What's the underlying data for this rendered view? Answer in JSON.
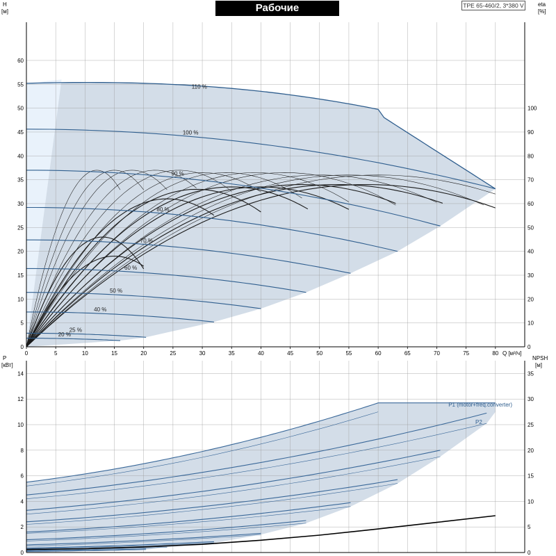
{
  "header": {
    "title": "Рабочие характеристики",
    "model": "TPE 65-460/2, 3*380 V"
  },
  "colors": {
    "envelope_fill": "#d3dde8",
    "light_region_fill": "#e9f2fb",
    "qh_curve": "#2f5e8e",
    "efficiency_curves": "#1a1a1a",
    "power_curves": "#3a6899",
    "npsh_curve": "#000000",
    "axis": "#000000",
    "grid": "#9a9a9a",
    "label_text": "#2f5e8e"
  },
  "chart_data": [
    {
      "type": "line",
      "name": "head",
      "xlabel": "Q [м³/ч]",
      "ylabel_left": [
        "H",
        "[м]"
      ],
      "ylabel_right": [
        "eta",
        "[%]"
      ],
      "xlim": [
        0,
        85
      ],
      "ylim_left": [
        0,
        68
      ],
      "ylim_right": [
        0,
        136
      ],
      "x_ticks": [
        0,
        5,
        10,
        15,
        20,
        25,
        30,
        35,
        40,
        45,
        50,
        55,
        60,
        65,
        70,
        75,
        80
      ],
      "y_ticks_left": [
        0,
        5,
        10,
        15,
        20,
        25,
        30,
        35,
        40,
        45,
        50,
        55,
        60
      ],
      "y_ticks_right": [
        0,
        10,
        20,
        30,
        40,
        50,
        60,
        70,
        80,
        90,
        100
      ],
      "grid": true,
      "speed_curves": [
        {
          "label": "110 %",
          "h0": 55.2,
          "h_end": 48.8,
          "q_max": 60,
          "label_q": 29.5
        },
        {
          "label": "100 %",
          "h0": 45.6,
          "h_end": 33.1,
          "q_max": 80,
          "label_q": 28
        },
        {
          "label": "90 %",
          "h0": 37.0,
          "h_end": 25.3,
          "q_max": 70.6,
          "label_q": 25.8
        },
        {
          "label": "80 %",
          "h0": 29.2,
          "h_end": 20.0,
          "q_max": 63.3,
          "label_q": 23.3
        },
        {
          "label": "70 %",
          "h0": 22.4,
          "h_end": 15.4,
          "q_max": 55.3,
          "label_q": 20.5
        },
        {
          "label": "60 %",
          "h0": 16.4,
          "h_end": 11.4,
          "q_max": 47.7,
          "label_q": 17.8
        },
        {
          "label": "50 %",
          "h0": 11.4,
          "h_end": 8.0,
          "q_max": 40.0,
          "label_q": 15.3
        },
        {
          "label": "40 %",
          "h0": 7.3,
          "h_end": 5.2,
          "q_max": 32.0,
          "label_q": 12.6
        },
        {
          "label": "25 %",
          "h0": 2.85,
          "h_end": 2.0,
          "q_max": 20.4,
          "label_q": 8.4
        },
        {
          "label": "20 %",
          "h0": 1.8,
          "h_end": 1.3,
          "q_max": 16.0,
          "label_q": 6.5
        }
      ],
      "envelope": {
        "max_curve": {
          "h0": 55.2,
          "q_knee": 60,
          "h_knee": 48.8,
          "q_end": 80,
          "h_end": 33.1
        },
        "min_boundary": [
          [
            0,
            0
          ],
          [
            16,
            1.3
          ],
          [
            20.4,
            2.0
          ],
          [
            24,
            3.0
          ],
          [
            32,
            5.2
          ],
          [
            40,
            8.0
          ],
          [
            47.7,
            11.4
          ],
          [
            55.3,
            15.4
          ],
          [
            63.3,
            20.0
          ],
          [
            70.6,
            25.3
          ],
          [
            80,
            33.1
          ]
        ],
        "light_region": [
          [
            0,
            55.2
          ],
          [
            6,
            56
          ],
          [
            0,
            0
          ]
        ]
      },
      "efficiency_curves": [
        {
          "peak_q": 12,
          "peak_eta": 74,
          "q_end": 16
        },
        {
          "peak_q": 15,
          "peak_eta": 74,
          "q_end": 20
        },
        {
          "peak_q": 18,
          "peak_eta": 74,
          "q_end": 24
        },
        {
          "peak_q": 22,
          "peak_eta": 74,
          "q_end": 29
        },
        {
          "peak_q": 26,
          "peak_eta": 74,
          "q_end": 35
        },
        {
          "peak_q": 30,
          "peak_eta": 73,
          "q_end": 40
        },
        {
          "peak_q": 34,
          "peak_eta": 73,
          "q_end": 47
        },
        {
          "peak_q": 39,
          "peak_eta": 73,
          "q_end": 55
        },
        {
          "peak_q": 44,
          "peak_eta": 73,
          "q_end": 63
        },
        {
          "peak_q": 50,
          "peak_eta": 72,
          "q_end": 70
        },
        {
          "peak_q": 55,
          "peak_eta": 72,
          "q_end": 78
        },
        {
          "peak_q": 60,
          "peak_eta": 72,
          "q_end": 80
        },
        {
          "peak_q": 24,
          "peak_eta": 62,
          "q_end": 32
        },
        {
          "peak_q": 29,
          "peak_eta": 66,
          "q_end": 40
        },
        {
          "peak_q": 35,
          "peak_eta": 67,
          "q_end": 48
        },
        {
          "peak_q": 40,
          "peak_eta": 67,
          "q_end": 55
        },
        {
          "peak_q": 47,
          "peak_eta": 68,
          "q_end": 63
        },
        {
          "peak_q": 53,
          "peak_eta": 68,
          "q_end": 71
        },
        {
          "peak_q": 58,
          "peak_eta": 68,
          "q_end": 80
        },
        {
          "peak_q": 13,
          "peak_eta": 46,
          "q_end": 20
        },
        {
          "peak_q": 15,
          "peak_eta": 38,
          "q_end": 20
        }
      ]
    },
    {
      "type": "line",
      "name": "power",
      "xlim": [
        0,
        85
      ],
      "ylim_left": [
        0,
        15
      ],
      "ylim_right": [
        0,
        37.5
      ],
      "ylabel_left": [
        "P",
        "[кВт]"
      ],
      "ylabel_right": [
        "NPSH",
        "[м]"
      ],
      "y_ticks_left": [
        0,
        2,
        4,
        6,
        8,
        10,
        12,
        14
      ],
      "y_ticks_right": [
        0,
        5,
        10,
        15,
        20,
        25,
        30,
        35
      ],
      "grid": true,
      "series_labels": [
        "P1 (motor+freq.converter)",
        "P2"
      ],
      "power_curves": [
        {
          "p1_0": 5.5,
          "p2_0": 5.2,
          "p1_end": 11.7,
          "p2_end": 11.0,
          "q_max": 60
        },
        {
          "p1_0": 4.5,
          "p2_0": 4.2,
          "p1_end": 10.9,
          "p2_end": 10.1,
          "q_max": 78.5
        },
        {
          "p1_0": 3.3,
          "p2_0": 3.0,
          "p1_end": 8.0,
          "p2_end": 7.5,
          "q_max": 70.6
        },
        {
          "p1_0": 2.4,
          "p2_0": 2.2,
          "p1_end": 5.7,
          "p2_end": 5.4,
          "q_max": 63.3
        },
        {
          "p1_0": 1.6,
          "p2_0": 1.5,
          "p1_end": 3.9,
          "p2_end": 3.6,
          "q_max": 55.3
        },
        {
          "p1_0": 1.0,
          "p2_0": 0.9,
          "p1_end": 2.5,
          "p2_end": 2.3,
          "q_max": 47.7
        },
        {
          "p1_0": 0.6,
          "p2_0": 0.5,
          "p1_end": 1.5,
          "p2_end": 1.4,
          "q_max": 40.0
        },
        {
          "p1_0": 0.35,
          "p2_0": 0.3,
          "p1_end": 0.85,
          "p2_end": 0.75,
          "q_max": 32.0
        },
        {
          "p1_0": 0.2,
          "p2_0": 0.15,
          "p1_end": 0.5,
          "p2_end": 0.42,
          "q_max": 24
        },
        {
          "p1_0": 0.1,
          "p2_0": 0.08,
          "p1_end": 0.28,
          "p2_end": 0.22,
          "q_max": 20.4
        }
      ],
      "p1_envelope_top": {
        "p0": 5.5,
        "q_knee": 60,
        "p_knee": 11.7,
        "q_end": 80,
        "p_end": 11.7
      },
      "npsh_curve": [
        [
          0,
          0.6
        ],
        [
          10,
          0.75
        ],
        [
          20,
          1.1
        ],
        [
          30,
          1.6
        ],
        [
          40,
          2.4
        ],
        [
          50,
          3.4
        ],
        [
          60,
          4.6
        ],
        [
          70,
          5.9
        ],
        [
          80,
          7.2
        ]
      ]
    }
  ]
}
